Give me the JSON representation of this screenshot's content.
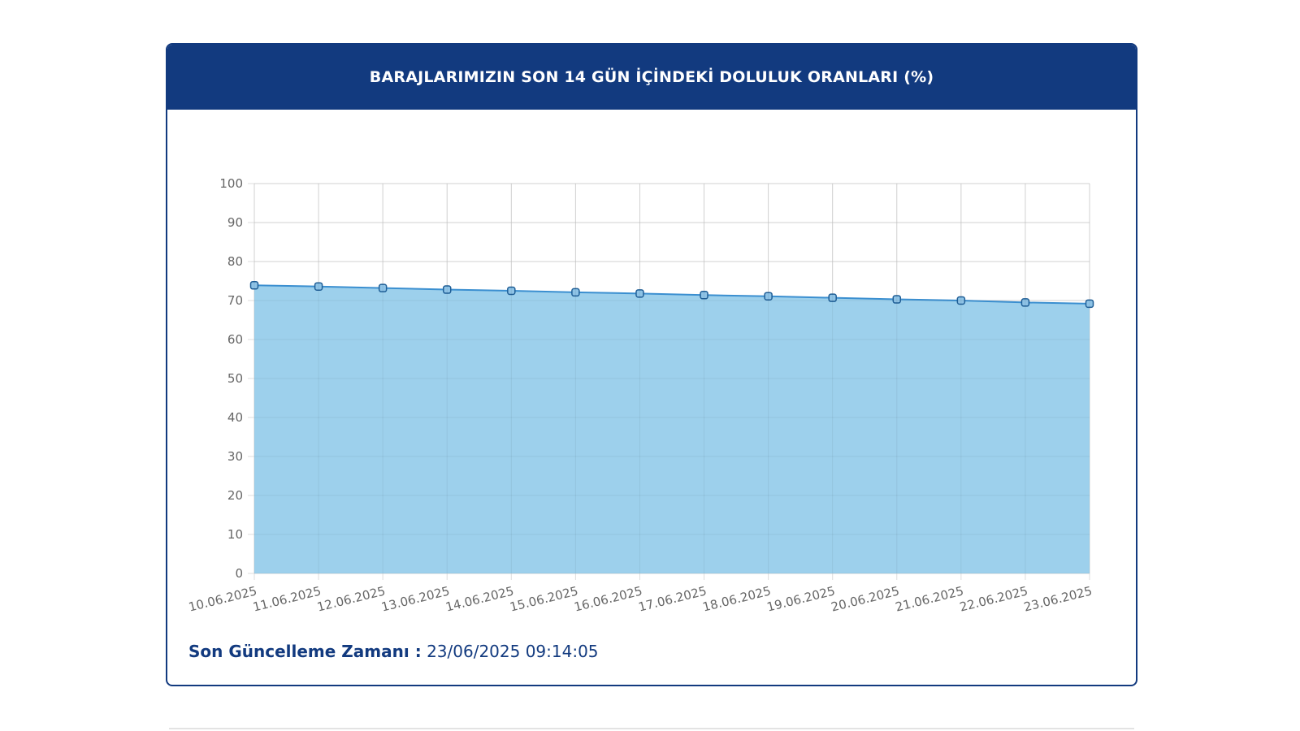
{
  "card": {
    "title": "BARAJLARIMIZIN SON 14 GÜN İÇİNDEKİ DOLULUK ORANLARI (%)",
    "footer_label": "Son Güncelleme Zamanı :",
    "footer_value": "23/06/2025 09:14:05"
  },
  "chart_data": {
    "type": "area",
    "title": "BARAJLARIMIZIN SON 14 GÜN İÇİNDEKİ DOLULUK ORANLARI (%)",
    "xlabel": "",
    "ylabel": "",
    "categories": [
      "10.06.2025",
      "11.06.2025",
      "12.06.2025",
      "13.06.2025",
      "14.06.2025",
      "15.06.2025",
      "16.06.2025",
      "17.06.2025",
      "18.06.2025",
      "19.06.2025",
      "20.06.2025",
      "21.06.2025",
      "22.06.2025",
      "23.06.2025"
    ],
    "series": [
      {
        "values": [
          73.9,
          73.6,
          73.2,
          72.8,
          72.5,
          72.1,
          71.8,
          71.4,
          71.1,
          70.7,
          70.3,
          70.0,
          69.5,
          69.2
        ]
      }
    ],
    "ylim": [
      0,
      100
    ],
    "yticks": [
      0,
      10,
      20,
      30,
      40,
      50,
      60,
      70,
      80,
      90,
      100
    ],
    "grid": true,
    "legend": "none",
    "colors": {
      "fill": "#9dd0ec",
      "line": "#3b8fd0",
      "marker_fill": "#8ec3e6",
      "marker_stroke": "#1f5e96",
      "grid": "#dddddd"
    }
  }
}
